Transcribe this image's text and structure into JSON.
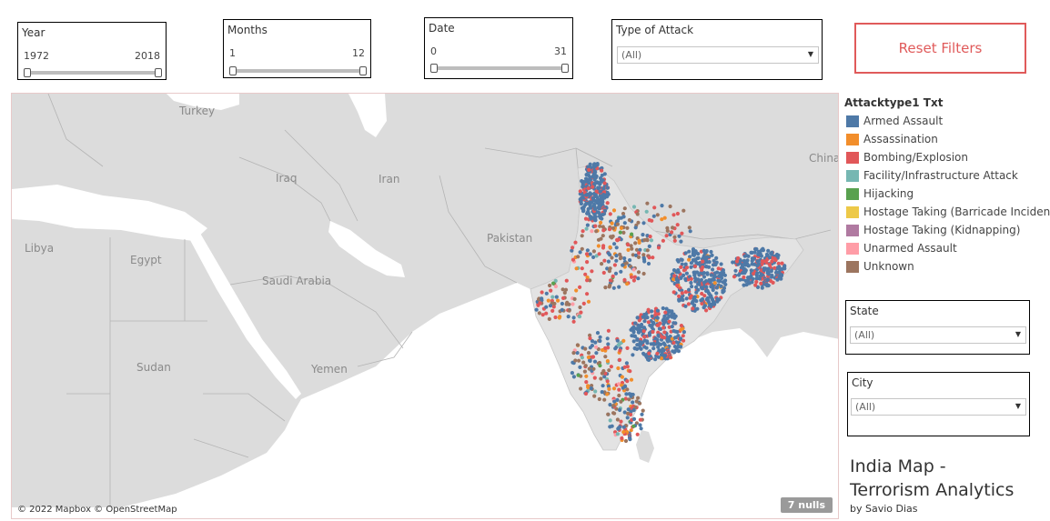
{
  "filters": {
    "year": {
      "title": "Year",
      "min_label": "1972",
      "max_label": "2018"
    },
    "months": {
      "title": "Months",
      "min_label": "1",
      "max_label": "12"
    },
    "date": {
      "title": "Date",
      "min_label": "0",
      "max_label": "31"
    },
    "attack_type": {
      "title": "Type of Attack",
      "value": "(All)"
    },
    "state": {
      "title": "State",
      "value": "(All)"
    },
    "city": {
      "title": "City",
      "value": "(All)"
    }
  },
  "reset_button": {
    "label": "Reset Filters",
    "color": "#e05a5a"
  },
  "map": {
    "place_labels": [
      {
        "id": "turkey",
        "text": "Turkey"
      },
      {
        "id": "iraq",
        "text": "Iraq"
      },
      {
        "id": "iran",
        "text": "Iran"
      },
      {
        "id": "china",
        "text": "China"
      },
      {
        "id": "pakistan",
        "text": "Pakistan"
      },
      {
        "id": "libya",
        "text": "Libya"
      },
      {
        "id": "egypt",
        "text": "Egypt"
      },
      {
        "id": "saudi",
        "text": "Saudi Arabia"
      },
      {
        "id": "yemen",
        "text": "Yemen"
      },
      {
        "id": "sudan",
        "text": "Sudan"
      }
    ],
    "attribution": "© 2022 Mapbox © OpenStreetMap",
    "nulls_badge": "7 nulls",
    "land_color": "#d9d9d9",
    "sea_color": "#ffffff"
  },
  "legend": {
    "title": "Attacktype1 Txt",
    "items": [
      {
        "label": "Armed Assault",
        "color": "#4e79a7"
      },
      {
        "label": "Assassination",
        "color": "#f28e2b"
      },
      {
        "label": "Bombing/Explosion",
        "color": "#e15759"
      },
      {
        "label": "Facility/Infrastructure Attack",
        "color": "#76b7b2"
      },
      {
        "label": "Hijacking",
        "color": "#59a14f"
      },
      {
        "label": "Hostage Taking (Barricade Incident)",
        "color": "#edc948"
      },
      {
        "label": "Hostage Taking (Kidnapping)",
        "color": "#b07aa1"
      },
      {
        "label": "Unarmed Assault",
        "color": "#ff9da7"
      },
      {
        "label": "Unknown",
        "color": "#9c755f"
      }
    ]
  },
  "title_block": {
    "title_line1": "India Map -",
    "title_line2": "Terrorism Analytics",
    "byline": "by Savio Dias"
  }
}
